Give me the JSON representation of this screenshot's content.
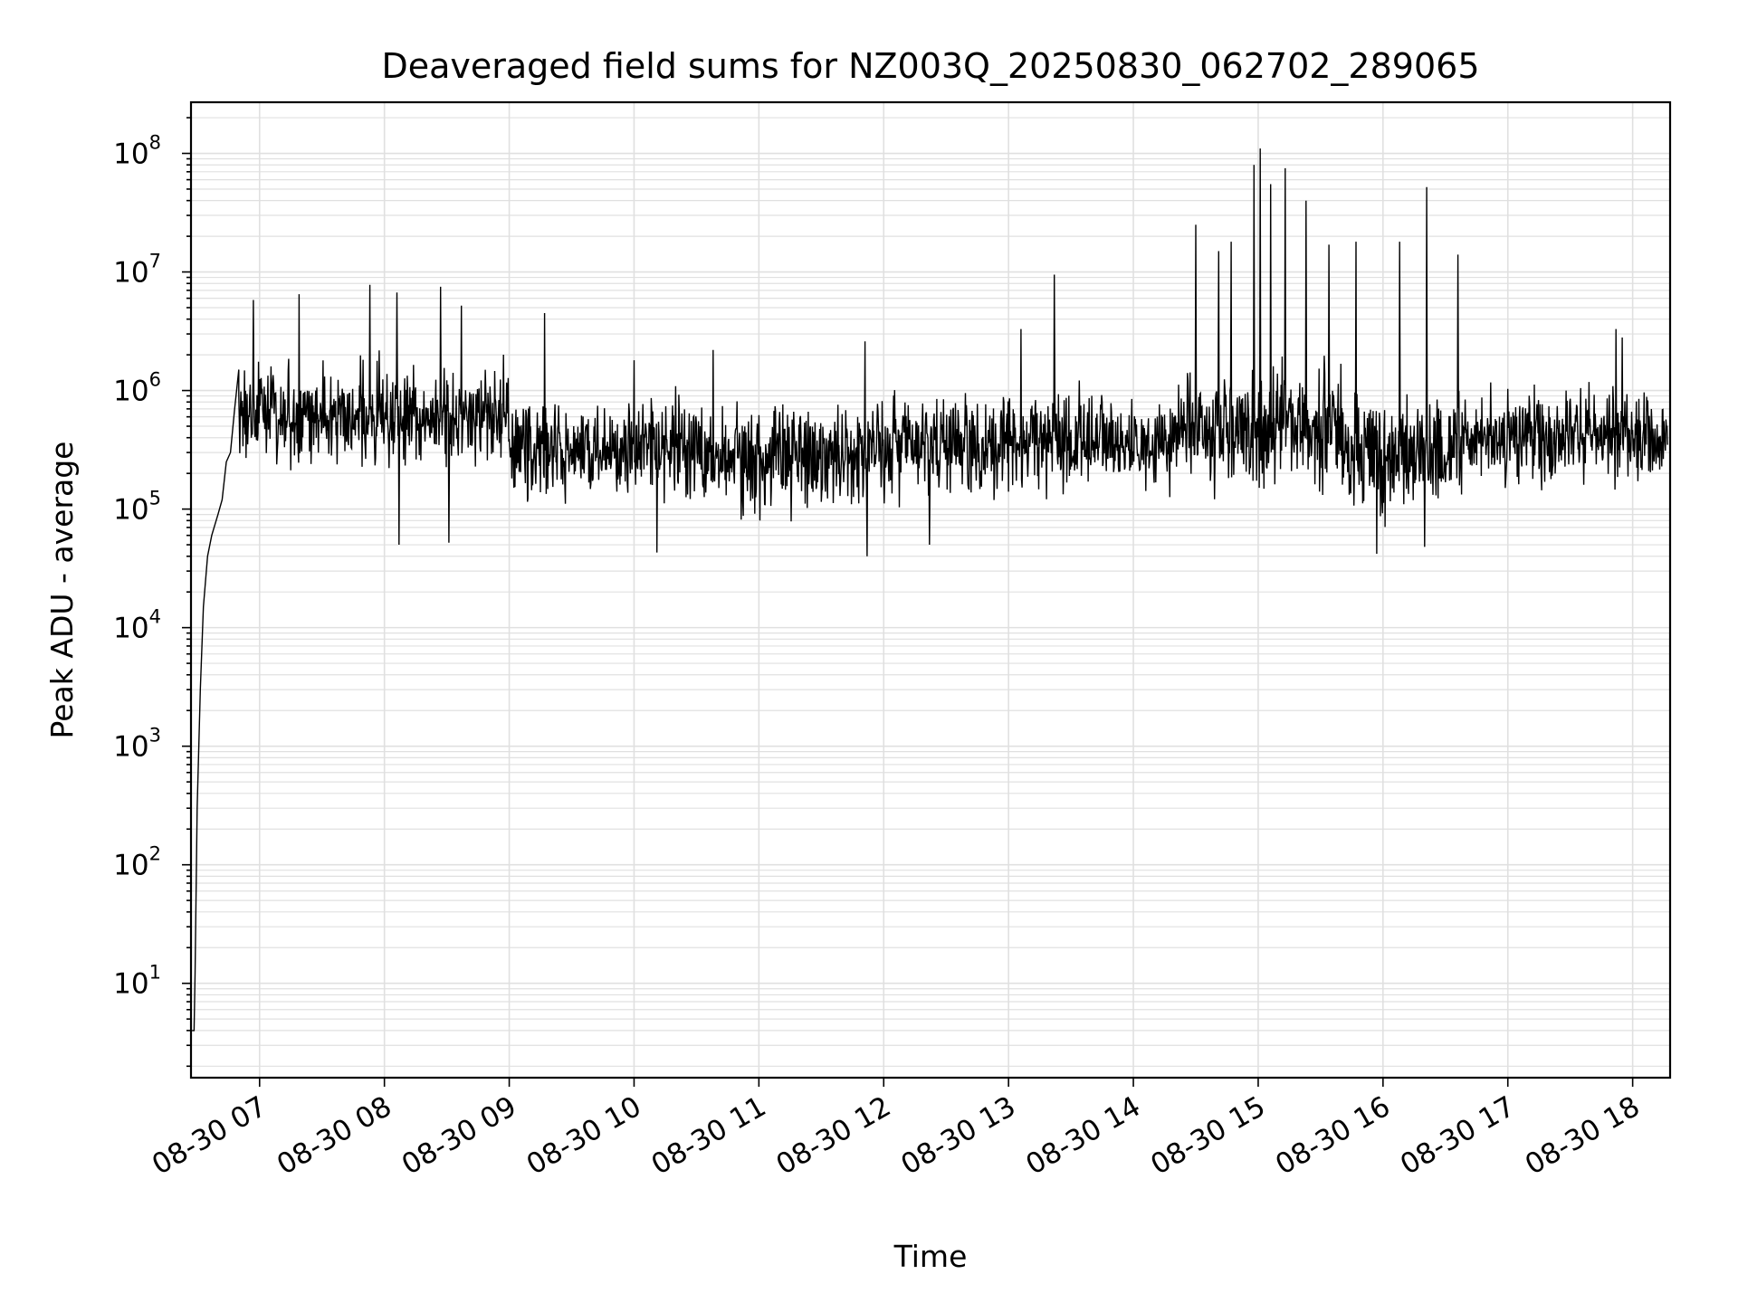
{
  "chart_data": {
    "type": "line",
    "title": "Deaveraged field sums for NZ003Q_20250830_062702_289065",
    "xlabel": "Time",
    "ylabel": "Peak ADU - average",
    "xlim": [
      "2025-08-30 06:27:02",
      "2025-08-30 18:18:00"
    ],
    "ylim": [
      1.6,
      270000000
    ],
    "yscale": "log",
    "grid": true,
    "line_color": "#000000",
    "grid_color": "#e0e0e0",
    "x_ticks": [
      {
        "value": "2025-08-30 07:00",
        "label": "08-30 07"
      },
      {
        "value": "2025-08-30 08:00",
        "label": "08-30 08"
      },
      {
        "value": "2025-08-30 09:00",
        "label": "08-30 09"
      },
      {
        "value": "2025-08-30 10:00",
        "label": "08-30 10"
      },
      {
        "value": "2025-08-30 11:00",
        "label": "08-30 11"
      },
      {
        "value": "2025-08-30 12:00",
        "label": "08-30 12"
      },
      {
        "value": "2025-08-30 13:00",
        "label": "08-30 13"
      },
      {
        "value": "2025-08-30 14:00",
        "label": "08-30 14"
      },
      {
        "value": "2025-08-30 15:00",
        "label": "08-30 15"
      },
      {
        "value": "2025-08-30 16:00",
        "label": "08-30 16"
      },
      {
        "value": "2025-08-30 17:00",
        "label": "08-30 17"
      },
      {
        "value": "2025-08-30 18:00",
        "label": "08-30 18"
      }
    ],
    "y_ticks": [
      {
        "value": 10,
        "base": "10",
        "exp": "1"
      },
      {
        "value": 100,
        "base": "10",
        "exp": "2"
      },
      {
        "value": 1000,
        "base": "10",
        "exp": "3"
      },
      {
        "value": 10000,
        "base": "10",
        "exp": "4"
      },
      {
        "value": 100000,
        "base": "10",
        "exp": "5"
      },
      {
        "value": 1000000,
        "base": "10",
        "exp": "6"
      },
      {
        "value": 10000000,
        "base": "10",
        "exp": "7"
      },
      {
        "value": 100000000,
        "base": "10",
        "exp": "8"
      }
    ],
    "series": [
      {
        "points": [
          [
            "2025-08-30 06:27:30",
            4
          ],
          [
            "2025-08-30 06:28:30",
            4
          ],
          [
            "2025-08-30 06:29:00",
            12
          ],
          [
            "2025-08-30 06:30:00",
            300
          ],
          [
            "2025-08-30 06:31:30",
            3000
          ],
          [
            "2025-08-30 06:33:00",
            15000
          ],
          [
            "2025-08-30 06:35:00",
            40000
          ],
          [
            "2025-08-30 06:37:00",
            60000
          ],
          [
            "2025-08-30 06:40:00",
            90000
          ],
          [
            "2025-08-30 06:42:00",
            120000
          ],
          [
            "2025-08-30 06:44:00",
            250000
          ],
          [
            "2025-08-30 06:46:00",
            300000
          ],
          [
            "2025-08-30 06:48:00",
            700000
          ],
          [
            "2025-08-30 06:50:00",
            1500000
          ],
          [
            "2025-08-30 06:55:00",
            700000
          ],
          [
            "2025-08-30 07:00:00",
            1000000
          ],
          [
            "2025-08-30 07:30:00",
            800000
          ],
          [
            "2025-08-30 08:00:00",
            900000
          ],
          [
            "2025-08-30 08:30:00",
            1200000
          ],
          [
            "2025-08-30 08:45:00",
            1800000
          ],
          [
            "2025-08-30 09:00:00",
            700000
          ],
          [
            "2025-08-30 09:30:00",
            400000
          ],
          [
            "2025-08-30 10:00:00",
            500000
          ],
          [
            "2025-08-30 10:30:00",
            600000
          ],
          [
            "2025-08-30 11:00:00",
            300000
          ],
          [
            "2025-08-30 11:30:00",
            250000
          ],
          [
            "2025-08-30 12:00:00",
            400000
          ],
          [
            "2025-08-30 12:30:00",
            350000
          ],
          [
            "2025-08-30 13:00:00",
            500000
          ],
          [
            "2025-08-30 13:30:00",
            400000
          ],
          [
            "2025-08-30 14:00:00",
            450000
          ],
          [
            "2025-08-30 14:30:00",
            400000
          ],
          [
            "2025-08-30 15:00:00",
            600000
          ],
          [
            "2025-08-30 15:30:00",
            300000
          ],
          [
            "2025-08-30 16:00:00",
            200000
          ],
          [
            "2025-08-30 16:30:00",
            250000
          ],
          [
            "2025-08-30 17:00:00",
            400000
          ],
          [
            "2025-08-30 17:30:00",
            500000
          ],
          [
            "2025-08-30 18:00:00",
            700000
          ],
          [
            "2025-08-30 18:17:00",
            100000
          ]
        ],
        "spikes": [
          [
            "2025-08-30 06:57:00",
            5800000
          ],
          [
            "2025-08-30 07:19:00",
            6500000
          ],
          [
            "2025-08-30 07:53:00",
            7800000
          ],
          [
            "2025-08-30 08:06:00",
            6700000
          ],
          [
            "2025-08-30 08:27:00",
            7500000
          ],
          [
            "2025-08-30 08:37:00",
            5200000
          ],
          [
            "2025-08-30 09:17:00",
            4500000
          ],
          [
            "2025-08-30 10:00:00",
            1800000
          ],
          [
            "2025-08-30 10:38:00",
            2200000
          ],
          [
            "2025-08-30 11:51:00",
            2600000
          ],
          [
            "2025-08-30 13:22:00",
            9500000
          ],
          [
            "2025-08-30 13:06:00",
            3300000
          ],
          [
            "2025-08-30 14:30:00",
            25000000
          ],
          [
            "2025-08-30 14:41:00",
            15000000
          ],
          [
            "2025-08-30 14:47:00",
            18000000
          ],
          [
            "2025-08-30 14:58:00",
            80000000
          ],
          [
            "2025-08-30 15:01:00",
            110000000
          ],
          [
            "2025-08-30 15:06:00",
            55000000
          ],
          [
            "2025-08-30 15:13:00",
            75000000
          ],
          [
            "2025-08-30 15:23:00",
            40000000
          ],
          [
            "2025-08-30 15:34:00",
            17000000
          ],
          [
            "2025-08-30 15:47:00",
            18000000
          ],
          [
            "2025-08-30 16:08:00",
            18000000
          ],
          [
            "2025-08-30 16:21:00",
            52000000
          ],
          [
            "2025-08-30 16:36:00",
            14000000
          ],
          [
            "2025-08-30 17:52:00",
            3300000
          ],
          [
            "2025-08-30 17:55:00",
            2800000
          ]
        ],
        "dips": [
          [
            "2025-08-30 08:07:00",
            50000
          ],
          [
            "2025-08-30 08:31:00",
            52000
          ],
          [
            "2025-08-30 10:11:00",
            43000
          ],
          [
            "2025-08-30 11:52:00",
            40000
          ],
          [
            "2025-08-30 12:22:00",
            50000
          ],
          [
            "2025-08-30 15:57:00",
            42000
          ],
          [
            "2025-08-30 16:20:00",
            48000
          ]
        ],
        "band_ranges": [
          [
            "2025-08-30 06:50:00",
            "2025-08-30 09:00:00",
            150000,
            2500000
          ],
          [
            "2025-08-30 09:00:00",
            "2025-08-30 10:40:00",
            80000,
            1300000
          ],
          [
            "2025-08-30 10:40:00",
            "2025-08-30 11:50:00",
            65000,
            1100000
          ],
          [
            "2025-08-30 11:50:00",
            "2025-08-30 14:15:00",
            90000,
            1400000
          ],
          [
            "2025-08-30 14:15:00",
            "2025-08-30 15:40:00",
            90000,
            2500000
          ],
          [
            "2025-08-30 15:40:00",
            "2025-08-30 16:40:00",
            55000,
            1500000
          ],
          [
            "2025-08-30 16:40:00",
            "2025-08-30 18:18:00",
            110000,
            1500000
          ]
        ]
      }
    ]
  }
}
